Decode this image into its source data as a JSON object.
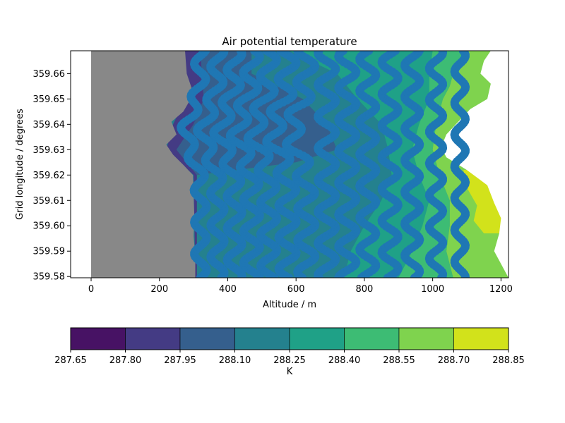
{
  "chart_data": {
    "type": "contour",
    "title": "Air potential temperature",
    "xlabel": "Altitude / m",
    "ylabel": "Grid longitude / degrees",
    "xlim": [
      -60,
      1222
    ],
    "ylim": [
      359.5795,
      359.669
    ],
    "x_ticks": [
      "0",
      "200",
      "400",
      "600",
      "800",
      "1000",
      "1200"
    ],
    "y_ticks": [
      "359.58",
      "359.59",
      "359.60",
      "359.61",
      "359.62",
      "359.63",
      "359.64",
      "359.65",
      "359.66"
    ],
    "terrain_color": "#888888",
    "marker_color": "#1f77b4",
    "terrain_boundary": [
      [
        359.669,
        275
      ],
      [
        359.66,
        280
      ],
      [
        359.652,
        300
      ],
      [
        359.645,
        270
      ],
      [
        359.641,
        235
      ],
      [
        359.636,
        250
      ],
      [
        359.632,
        220
      ],
      [
        359.628,
        240
      ],
      [
        359.624,
        270
      ],
      [
        359.62,
        298
      ],
      [
        359.612,
        300
      ],
      [
        359.604,
        302
      ],
      [
        359.596,
        300
      ],
      [
        359.588,
        305
      ],
      [
        359.5795,
        305
      ]
    ],
    "colorbar": {
      "label": "K",
      "levels": [
        "287.65",
        "287.80",
        "287.95",
        "288.10",
        "288.25",
        "288.40",
        "288.55",
        "288.70",
        "288.85"
      ],
      "colors": [
        "#471264",
        "#443b84",
        "#355f8d",
        "#24818e",
        "#1fa187",
        "#3dbc74",
        "#7fd34e",
        "#d2e21b"
      ]
    },
    "zones": [
      {
        "level": 1,
        "left": [
          [
            359.669,
            275
          ],
          [
            359.65,
            275
          ],
          [
            359.64,
            240
          ],
          [
            359.63,
            220
          ],
          [
            359.62,
            300
          ],
          [
            359.5795,
            305
          ]
        ],
        "right": [
          [
            359.669,
            320
          ],
          [
            359.65,
            330
          ],
          [
            359.64,
            300
          ],
          [
            359.63,
            250
          ],
          [
            359.62,
            310
          ],
          [
            359.5795,
            310
          ]
        ]
      },
      {
        "level": 2,
        "left": [
          [
            359.669,
            320
          ],
          [
            359.65,
            330
          ],
          [
            359.64,
            300
          ],
          [
            359.63,
            250
          ],
          [
            359.62,
            310
          ],
          [
            359.5795,
            310
          ]
        ],
        "right": [
          [
            359.669,
            470
          ],
          [
            359.66,
            470
          ],
          [
            359.65,
            620
          ],
          [
            359.64,
            690
          ],
          [
            359.63,
            720
          ],
          [
            359.625,
            600
          ],
          [
            359.62,
            310
          ],
          [
            359.5795,
            310
          ]
        ]
      },
      {
        "level": 3,
        "left": [
          [
            359.669,
            470
          ],
          [
            359.66,
            470
          ],
          [
            359.65,
            620
          ],
          [
            359.64,
            690
          ],
          [
            359.63,
            720
          ],
          [
            359.625,
            600
          ],
          [
            359.62,
            310
          ],
          [
            359.5795,
            310
          ]
        ],
        "right": [
          [
            359.669,
            580
          ],
          [
            359.66,
            720
          ],
          [
            359.65,
            780
          ],
          [
            359.64,
            850
          ],
          [
            359.63,
            870
          ],
          [
            359.62,
            880
          ],
          [
            359.61,
            850
          ],
          [
            359.6,
            800
          ],
          [
            359.59,
            760
          ],
          [
            359.5795,
            740
          ]
        ]
      },
      {
        "level": 4,
        "left": [
          [
            359.669,
            580
          ],
          [
            359.66,
            720
          ],
          [
            359.65,
            780
          ],
          [
            359.64,
            850
          ],
          [
            359.63,
            870
          ],
          [
            359.62,
            880
          ],
          [
            359.61,
            850
          ],
          [
            359.6,
            800
          ],
          [
            359.59,
            760
          ],
          [
            359.5795,
            740
          ]
        ],
        "right": [
          [
            359.669,
            1000
          ],
          [
            359.66,
            990
          ],
          [
            359.65,
            990
          ],
          [
            359.64,
            960
          ],
          [
            359.63,
            940
          ],
          [
            359.62,
            960
          ],
          [
            359.61,
            990
          ],
          [
            359.6,
            970
          ],
          [
            359.59,
            940
          ],
          [
            359.5795,
            900
          ]
        ]
      },
      {
        "level": 5,
        "left": [
          [
            359.669,
            1000
          ],
          [
            359.66,
            990
          ],
          [
            359.65,
            990
          ],
          [
            359.64,
            960
          ],
          [
            359.63,
            940
          ],
          [
            359.62,
            960
          ],
          [
            359.61,
            990
          ],
          [
            359.6,
            970
          ],
          [
            359.59,
            940
          ],
          [
            359.5795,
            900
          ]
        ],
        "right": [
          [
            359.669,
            1105
          ],
          [
            359.66,
            1060
          ],
          [
            359.655,
            1050
          ],
          [
            359.65,
            1030
          ],
          [
            359.64,
            1010
          ],
          [
            359.63,
            1000
          ],
          [
            359.62,
            1020
          ],
          [
            359.61,
            1050
          ],
          [
            359.6,
            1050
          ],
          [
            359.59,
            1040
          ],
          [
            359.5795,
            1060
          ]
        ]
      },
      {
        "level": 6,
        "left": [
          [
            359.669,
            1105
          ],
          [
            359.66,
            1060
          ],
          [
            359.655,
            1050
          ],
          [
            359.65,
            1030
          ],
          [
            359.64,
            1010
          ],
          [
            359.63,
            1000
          ],
          [
            359.62,
            1020
          ],
          [
            359.61,
            1050
          ],
          [
            359.6,
            1050
          ],
          [
            359.59,
            1040
          ],
          [
            359.5795,
            1060
          ]
        ],
        "right": [
          [
            359.669,
            1222
          ],
          [
            359.5795,
            1222
          ]
        ]
      },
      {
        "level": 7,
        "left": [
          [
            359.622,
            1090
          ],
          [
            359.615,
            1100
          ],
          [
            359.608,
            1130
          ],
          [
            359.602,
            1120
          ],
          [
            359.597,
            1150
          ]
        ],
        "right": [
          [
            359.622,
            1150
          ],
          [
            359.615,
            1180
          ],
          [
            359.608,
            1200
          ],
          [
            359.602,
            1210
          ],
          [
            359.597,
            1200
          ]
        ]
      }
    ],
    "white_region": [
      [
        359.669,
        1170
      ],
      [
        359.665,
        1150
      ],
      [
        359.66,
        1140
      ],
      [
        359.656,
        1170
      ],
      [
        359.65,
        1160
      ],
      [
        359.646,
        1110
      ],
      [
        359.641,
        1075
      ],
      [
        359.636,
        1040
      ],
      [
        359.631,
        1025
      ],
      [
        359.627,
        1040
      ],
      [
        359.622,
        1100
      ],
      [
        359.616,
        1160
      ],
      [
        359.609,
        1180
      ],
      [
        359.603,
        1200
      ],
      [
        359.597,
        1195
      ],
      [
        359.59,
        1180
      ],
      [
        359.585,
        1200
      ],
      [
        359.5795,
        1222
      ]
    ],
    "trajectory_columns": [
      {
        "x": 320,
        "amp": 18
      },
      {
        "x": 370,
        "amp": 20
      },
      {
        "x": 420,
        "amp": 22
      },
      {
        "x": 470,
        "amp": 24
      },
      {
        "x": 520,
        "amp": 24
      },
      {
        "x": 575,
        "amp": 26
      },
      {
        "x": 630,
        "amp": 26
      },
      {
        "x": 690,
        "amp": 26
      },
      {
        "x": 750,
        "amp": 26
      },
      {
        "x": 810,
        "amp": 24
      },
      {
        "x": 875,
        "amp": 24
      },
      {
        "x": 940,
        "amp": 22
      },
      {
        "x": 1010,
        "amp": 20
      },
      {
        "x": 1080,
        "amp": 16
      }
    ]
  }
}
